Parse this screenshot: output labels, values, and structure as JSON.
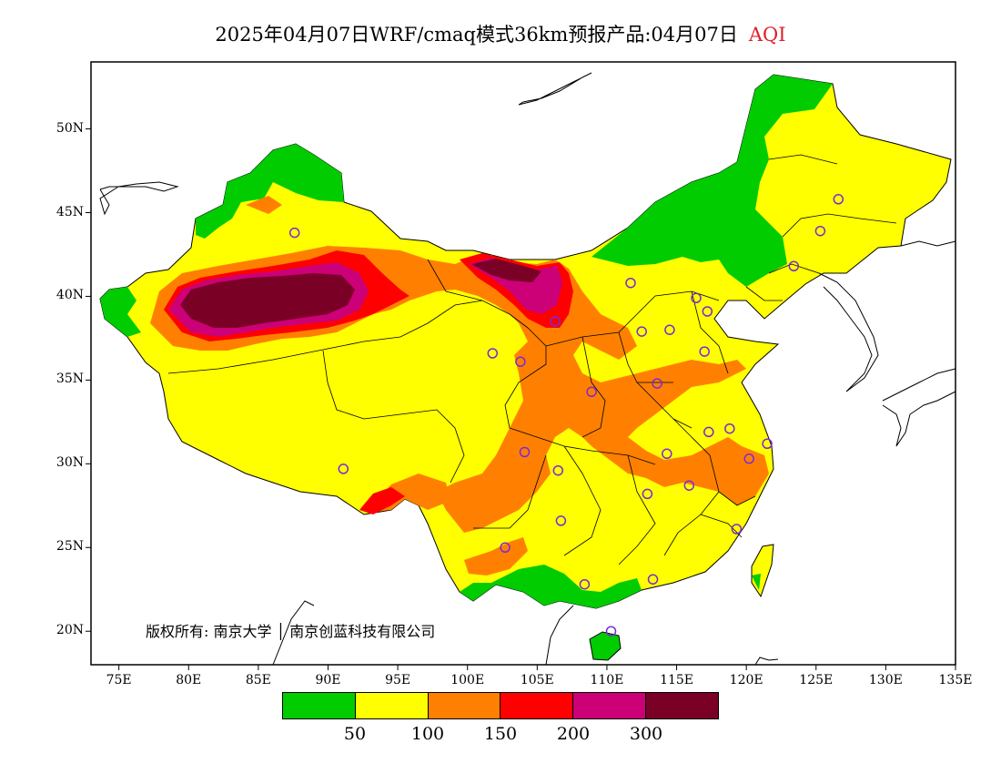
{
  "title": {
    "text": "2025年04月07日WRF/cmaq模式36km预报产品:04月07日",
    "variable": "AQI"
  },
  "axes": {
    "lat_ticks": [
      "50N",
      "45N",
      "40N",
      "35N",
      "30N",
      "25N",
      "20N"
    ],
    "lon_ticks": [
      "75E",
      "80E",
      "85E",
      "90E",
      "95E",
      "100E",
      "105E",
      "110E",
      "115E",
      "120E",
      "125E",
      "130E",
      "135E"
    ],
    "lon_range": [
      73,
      135
    ],
    "lat_range": [
      18,
      54
    ]
  },
  "copyright": "版权所有: 南京大学 │ 南京创蓝科技有限公司",
  "legend": {
    "colors": [
      "#00cc00",
      "#ffff00",
      "#ff8000",
      "#ff0000",
      "#cc0077",
      "#7a0026"
    ],
    "labels": [
      "50",
      "100",
      "150",
      "200",
      "300"
    ]
  },
  "categories": {
    "good": "#00cc00",
    "moderate": "#ffff00",
    "unhealthy_sensitive": "#ff8000",
    "unhealthy": "#ff0000",
    "very_unhealthy": "#cc0077",
    "hazardous": "#7a0026"
  },
  "stations": [
    {
      "lon": 87.6,
      "lat": 43.8
    },
    {
      "lon": 91.1,
      "lat": 29.7
    },
    {
      "lon": 101.8,
      "lat": 36.6
    },
    {
      "lon": 103.8,
      "lat": 36.1
    },
    {
      "lon": 106.3,
      "lat": 38.5
    },
    {
      "lon": 111.7,
      "lat": 40.8
    },
    {
      "lon": 116.4,
      "lat": 39.9
    },
    {
      "lon": 117.2,
      "lat": 39.1
    },
    {
      "lon": 112.5,
      "lat": 37.9
    },
    {
      "lon": 114.5,
      "lat": 38.0
    },
    {
      "lon": 117.0,
      "lat": 36.7
    },
    {
      "lon": 113.6,
      "lat": 34.8
    },
    {
      "lon": 108.9,
      "lat": 34.3
    },
    {
      "lon": 104.1,
      "lat": 30.7
    },
    {
      "lon": 106.5,
      "lat": 29.6
    },
    {
      "lon": 114.3,
      "lat": 30.6
    },
    {
      "lon": 117.3,
      "lat": 31.9
    },
    {
      "lon": 118.8,
      "lat": 32.1
    },
    {
      "lon": 120.2,
      "lat": 30.3
    },
    {
      "lon": 121.5,
      "lat": 31.2
    },
    {
      "lon": 115.9,
      "lat": 28.7
    },
    {
      "lon": 112.9,
      "lat": 28.2
    },
    {
      "lon": 106.7,
      "lat": 26.6
    },
    {
      "lon": 102.7,
      "lat": 25.0
    },
    {
      "lon": 108.4,
      "lat": 22.8
    },
    {
      "lon": 113.3,
      "lat": 23.1
    },
    {
      "lon": 119.3,
      "lat": 26.1
    },
    {
      "lon": 110.3,
      "lat": 20.0
    },
    {
      "lon": 123.4,
      "lat": 41.8
    },
    {
      "lon": 125.3,
      "lat": 43.9
    },
    {
      "lon": 126.6,
      "lat": 45.8
    }
  ]
}
